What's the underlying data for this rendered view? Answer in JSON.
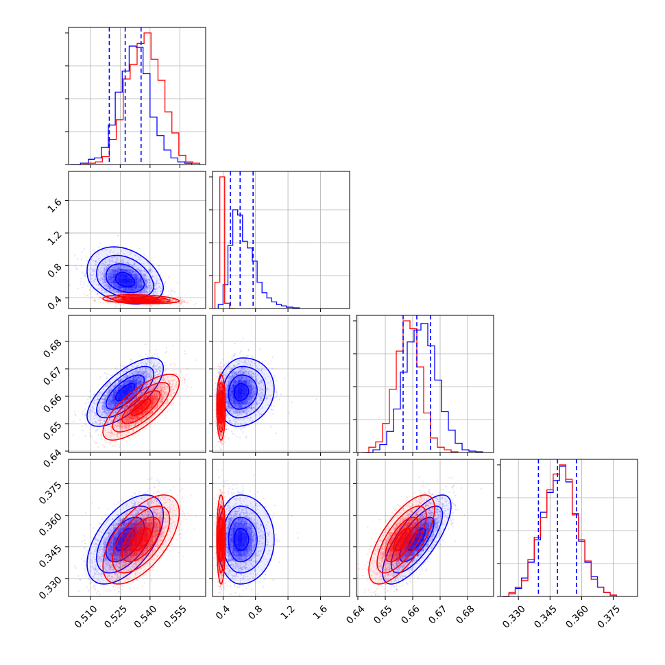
{
  "chart_data": {
    "type": "corner",
    "colors": {
      "blue": "#0000ff",
      "red": "#ff0000"
    },
    "params": [
      {
        "ticks": [
          0.51,
          0.525,
          0.54,
          0.555
        ],
        "tick_labels": [
          "0.510",
          "0.525",
          "0.540",
          "0.555"
        ],
        "range": [
          0.499,
          0.568
        ]
      },
      {
        "ticks": [
          0.4,
          0.8,
          1.2,
          1.6
        ],
        "tick_labels": [
          "0.4",
          "0.8",
          "1.2",
          "1.6"
        ],
        "range": [
          0.27,
          1.96
        ]
      },
      {
        "ticks": [
          0.64,
          0.65,
          0.66,
          0.67,
          0.68
        ],
        "tick_labels": [
          "0.64",
          "0.65",
          "0.66",
          "0.67",
          "0.68"
        ],
        "range": [
          0.6395,
          0.6895
        ]
      },
      {
        "ticks": [
          0.33,
          0.345,
          0.36,
          0.375
        ],
        "tick_labels": [
          "0.330",
          "0.345",
          "0.360",
          "0.375"
        ],
        "range": [
          0.3215,
          0.3865
        ]
      }
    ],
    "quantiles": [
      [
        0.5195,
        0.5275,
        0.5355
      ],
      [
        0.49,
        0.61,
        0.77
      ],
      [
        0.6565,
        0.6615,
        0.6665
      ],
      [
        0.3395,
        0.3485,
        0.3575
      ]
    ],
    "series": [
      {
        "color": "blue",
        "means": [
          0.5275,
          0.61,
          0.6615,
          0.3485
        ],
        "sds": [
          0.008,
          0.14,
          0.0052,
          0.0088
        ],
        "corr": [
          [
            1,
            -0.3,
            0.7,
            0.55
          ],
          [
            -0.3,
            1,
            0.1,
            0.0
          ],
          [
            0.7,
            0.1,
            1,
            0.75
          ],
          [
            0.55,
            0.0,
            0.75,
            1
          ]
        ]
      },
      {
        "color": "red",
        "means": [
          0.5355,
          0.375,
          0.656,
          0.3485
        ],
        "sds": [
          0.008,
          0.022,
          0.005,
          0.0088
        ],
        "corr": [
          [
            1,
            -0.25,
            0.75,
            0.6
          ],
          [
            -0.25,
            1,
            0.0,
            0.0
          ],
          [
            0.75,
            0.0,
            1,
            0.7
          ],
          [
            0.6,
            0.0,
            0.7,
            1
          ]
        ]
      }
    ],
    "diagonal_hist": [
      {
        "blue": [
          [
            0.5,
            0.0
          ],
          [
            0.505,
            0.01
          ],
          [
            0.509,
            0.04
          ],
          [
            0.512,
            0.05
          ],
          [
            0.5155,
            0.13
          ],
          [
            0.519,
            0.3
          ],
          [
            0.5225,
            0.55
          ],
          [
            0.526,
            0.71
          ],
          [
            0.5295,
            0.9
          ],
          [
            0.533,
            0.89
          ],
          [
            0.5365,
            0.69
          ],
          [
            0.54,
            0.36
          ],
          [
            0.5435,
            0.22
          ],
          [
            0.547,
            0.11
          ],
          [
            0.5505,
            0.05
          ],
          [
            0.554,
            0.02
          ],
          [
            0.5575,
            0.01
          ]
        ],
        "red": [
          [
            0.506,
            0.0
          ],
          [
            0.509,
            0.01
          ],
          [
            0.5125,
            0.02
          ],
          [
            0.516,
            0.06
          ],
          [
            0.5195,
            0.19
          ],
          [
            0.523,
            0.34
          ],
          [
            0.5265,
            0.65
          ],
          [
            0.53,
            0.76
          ],
          [
            0.5335,
            0.92
          ],
          [
            0.537,
            1.0
          ],
          [
            0.5405,
            0.8
          ],
          [
            0.544,
            0.64
          ],
          [
            0.5475,
            0.4
          ],
          [
            0.551,
            0.24
          ],
          [
            0.5545,
            0.07
          ],
          [
            0.558,
            0.02
          ],
          [
            0.5615,
            0.01
          ]
        ]
      },
      {
        "blue": [
          [
            0.34,
            0.03
          ],
          [
            0.4,
            0.18
          ],
          [
            0.46,
            0.48
          ],
          [
            0.52,
            0.75
          ],
          [
            0.58,
            0.71
          ],
          [
            0.64,
            0.51
          ],
          [
            0.7,
            0.46
          ],
          [
            0.76,
            0.36
          ],
          [
            0.82,
            0.2
          ],
          [
            0.88,
            0.12
          ],
          [
            0.94,
            0.08
          ],
          [
            1.0,
            0.05
          ],
          [
            1.06,
            0.03
          ],
          [
            1.12,
            0.02
          ],
          [
            1.18,
            0.01
          ],
          [
            1.26,
            0.005
          ]
        ],
        "red": [
          [
            0.3,
            0.2
          ],
          [
            0.36,
            1.0
          ],
          [
            0.42,
            0.04
          ],
          [
            0.48,
            0.0
          ]
        ]
      },
      {
        "blue": [
          [
            0.643,
            0.0
          ],
          [
            0.6455,
            0.02
          ],
          [
            0.648,
            0.06
          ],
          [
            0.6505,
            0.16
          ],
          [
            0.653,
            0.33
          ],
          [
            0.6555,
            0.61
          ],
          [
            0.658,
            0.84
          ],
          [
            0.6605,
            0.93
          ],
          [
            0.663,
            0.98
          ],
          [
            0.6655,
            0.81
          ],
          [
            0.668,
            0.55
          ],
          [
            0.6705,
            0.31
          ],
          [
            0.673,
            0.17
          ],
          [
            0.6755,
            0.07
          ],
          [
            0.678,
            0.02
          ],
          [
            0.6805,
            0.01
          ],
          [
            0.683,
            0.005
          ]
        ],
        "red": [
          [
            0.6415,
            0.0
          ],
          [
            0.644,
            0.04
          ],
          [
            0.6465,
            0.08
          ],
          [
            0.649,
            0.22
          ],
          [
            0.6515,
            0.48
          ],
          [
            0.654,
            0.77
          ],
          [
            0.6565,
            1.0
          ],
          [
            0.659,
            0.94
          ],
          [
            0.6615,
            0.65
          ],
          [
            0.664,
            0.3
          ],
          [
            0.6665,
            0.11
          ],
          [
            0.669,
            0.04
          ],
          [
            0.6715,
            0.02
          ],
          [
            0.674,
            0.005
          ]
        ]
      },
      {
        "blue": [
          [
            0.3225,
            0.0
          ],
          [
            0.3255,
            0.02
          ],
          [
            0.3285,
            0.06
          ],
          [
            0.3315,
            0.14
          ],
          [
            0.3345,
            0.26
          ],
          [
            0.3375,
            0.43
          ],
          [
            0.3405,
            0.64
          ],
          [
            0.3435,
            0.79
          ],
          [
            0.3465,
            0.88
          ],
          [
            0.3495,
            0.99
          ],
          [
            0.3525,
            0.87
          ],
          [
            0.3555,
            0.63
          ],
          [
            0.3585,
            0.42
          ],
          [
            0.3615,
            0.26
          ],
          [
            0.3645,
            0.15
          ],
          [
            0.3675,
            0.07
          ],
          [
            0.3705,
            0.03
          ],
          [
            0.3735,
            0.01
          ]
        ],
        "red": [
          [
            0.3225,
            0.0
          ],
          [
            0.3255,
            0.03
          ],
          [
            0.3285,
            0.07
          ],
          [
            0.3315,
            0.12
          ],
          [
            0.3345,
            0.28
          ],
          [
            0.3375,
            0.45
          ],
          [
            0.3405,
            0.6
          ],
          [
            0.3435,
            0.81
          ],
          [
            0.3465,
            0.93
          ],
          [
            0.3495,
            1.0
          ],
          [
            0.3525,
            0.89
          ],
          [
            0.3555,
            0.62
          ],
          [
            0.3585,
            0.43
          ],
          [
            0.3615,
            0.27
          ],
          [
            0.3645,
            0.13
          ],
          [
            0.3675,
            0.07
          ],
          [
            0.3705,
            0.03
          ],
          [
            0.3735,
            0.01
          ]
        ]
      }
    ],
    "contour_levels_sigma": [
      0.5,
      1.0,
      1.5,
      2.0
    ],
    "scatter_points_per_series": 1800,
    "grid": true,
    "legend": "none"
  }
}
